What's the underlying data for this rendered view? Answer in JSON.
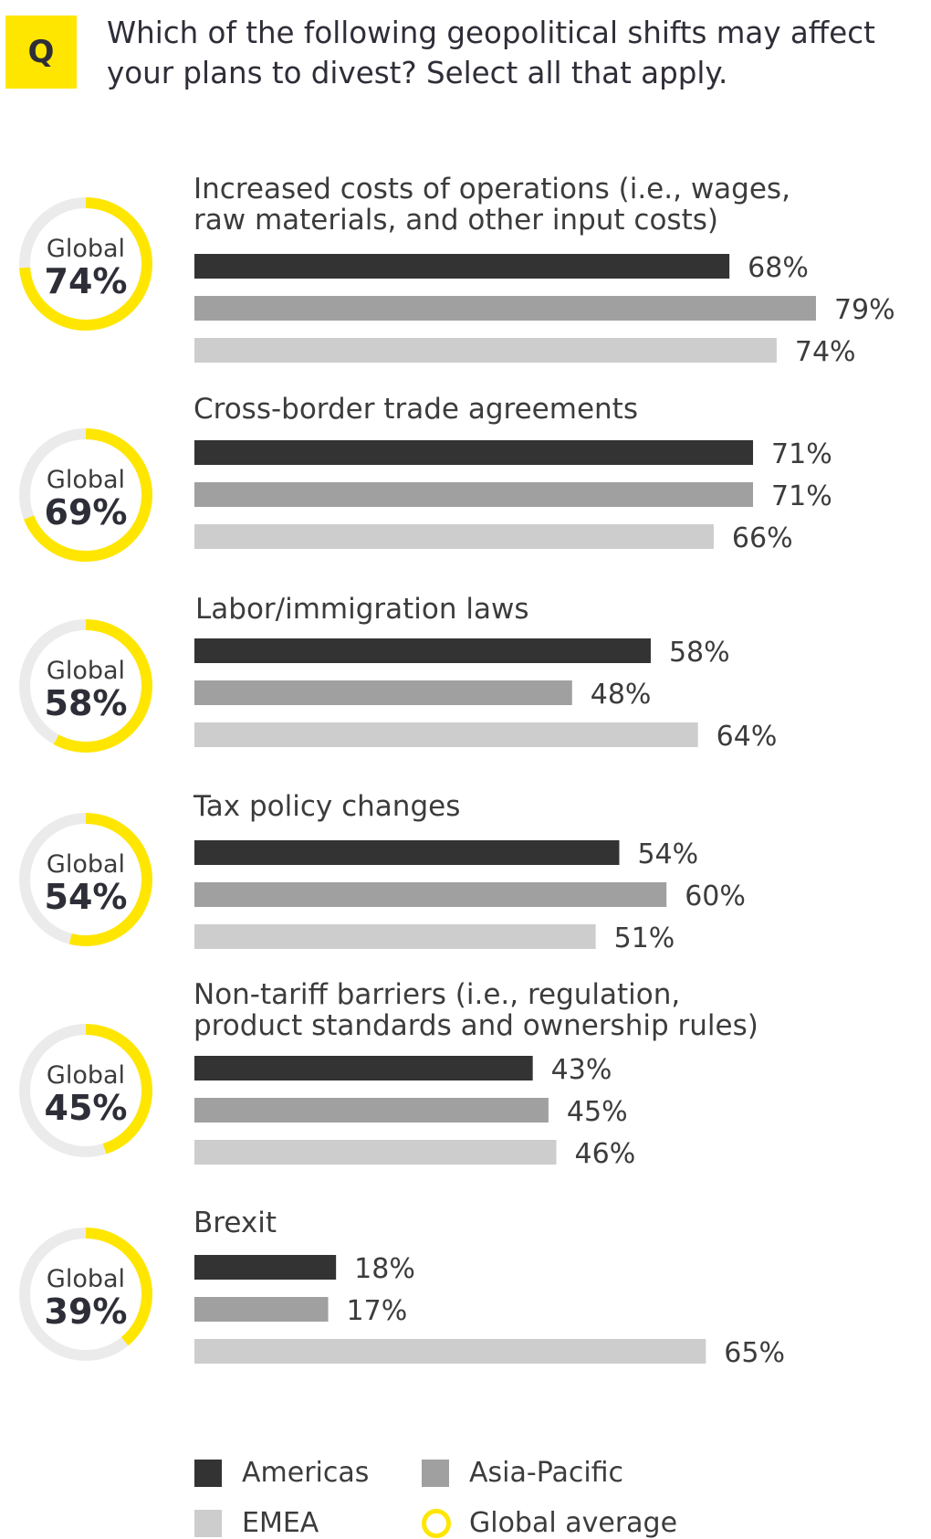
{
  "header": {
    "badge_label": "Q",
    "question": "Which of the following geopolitical shifts may affect your plans to divest? Select all that apply."
  },
  "colors": {
    "accent_yellow": "#ffe600",
    "ring_track": "#ebebeb",
    "americas": "#333333",
    "asia_pacific": "#a0a0a0",
    "emea": "#cdcdcd"
  },
  "chart_data": {
    "type": "bar",
    "orientation": "horizontal",
    "unit": "%",
    "series_names": [
      "Americas",
      "Asia-Pacific",
      "EMEA"
    ],
    "global_label": "Global",
    "groups": [
      {
        "label_lines": [
          "Increased costs of operations (i.e., wages,",
          "raw materials, and other input costs)"
        ],
        "global": 74,
        "global_text": "74%",
        "values": [
          68,
          79,
          74
        ],
        "value_texts": [
          "68%",
          "79%",
          "74%"
        ]
      },
      {
        "label_lines": [
          "Cross-border trade agreements"
        ],
        "global": 69,
        "global_text": "69%",
        "values": [
          71,
          71,
          66
        ],
        "value_texts": [
          "71%",
          "71%",
          "66%"
        ]
      },
      {
        "label_lines": [
          "Labor/immigration laws"
        ],
        "global": 58,
        "global_text": "58%",
        "values": [
          58,
          48,
          64
        ],
        "value_texts": [
          "58%",
          "48%",
          "64%"
        ]
      },
      {
        "label_lines": [
          "Tax policy changes"
        ],
        "global": 54,
        "global_text": "54%",
        "values": [
          54,
          60,
          51
        ],
        "value_texts": [
          "54%",
          "60%",
          "51%"
        ]
      },
      {
        "label_lines": [
          "Non-tariff barriers (i.e., regulation,",
          "product standards and ownership rules)"
        ],
        "global": 45,
        "global_text": "45%",
        "values": [
          43,
          45,
          46
        ],
        "value_texts": [
          "43%",
          "45%",
          "46%"
        ]
      },
      {
        "label_lines": [
          "Brexit"
        ],
        "global": 39,
        "global_text": "39%",
        "values": [
          18,
          17,
          65
        ],
        "value_texts": [
          "18%",
          "17%",
          "65%"
        ]
      }
    ]
  },
  "legend": {
    "americas": "Americas",
    "asia_pacific": "Asia-Pacific",
    "emea": "EMEA",
    "global_average": "Global average"
  }
}
